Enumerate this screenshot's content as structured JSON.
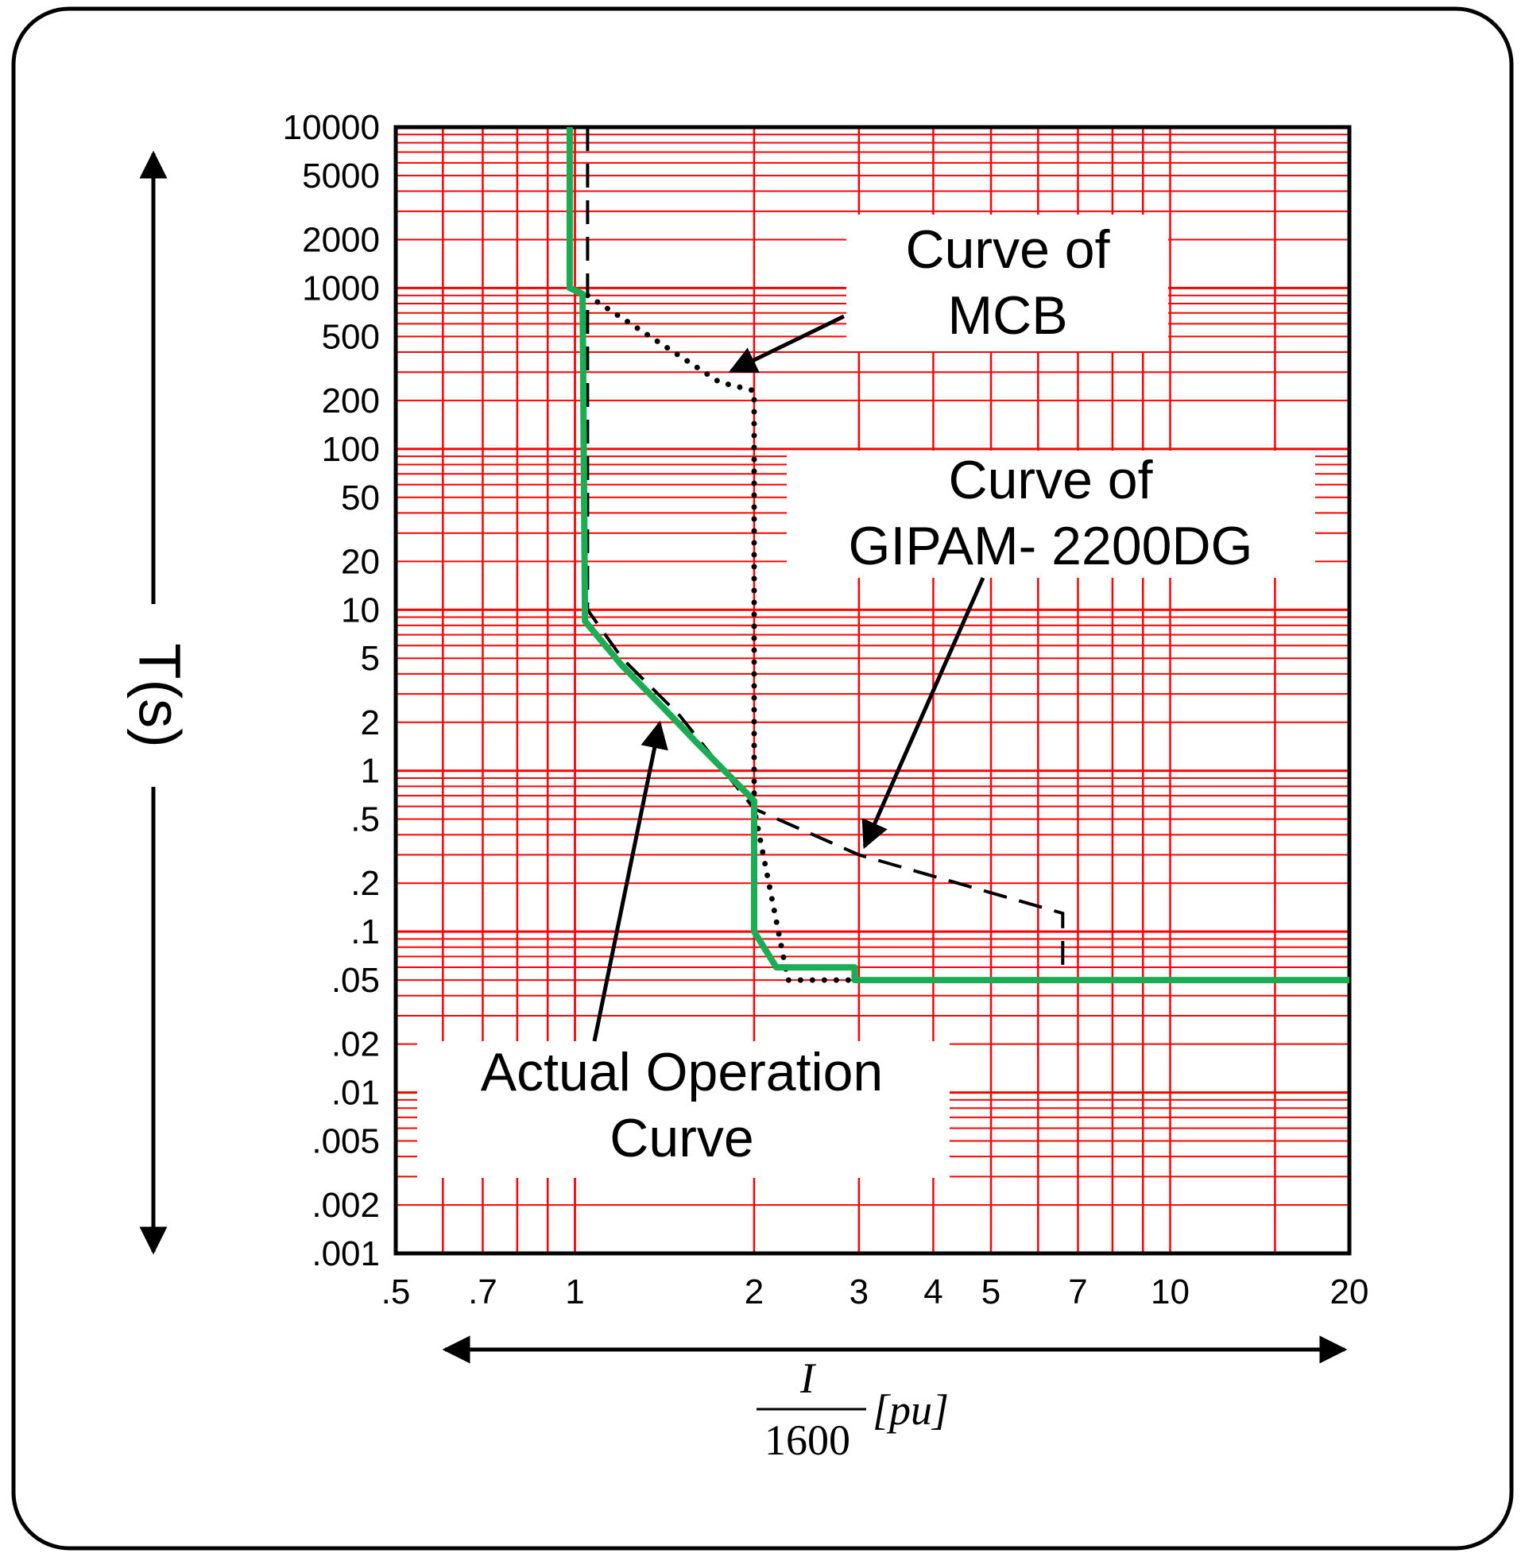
{
  "chart_data": {
    "type": "line",
    "title": "",
    "xlabel": {
      "numerator": "I",
      "denominator": "1600",
      "unit": "[pu]"
    },
    "ylabel": "T(s)",
    "xscale": "log",
    "yscale": "log",
    "xlim": [
      0.5,
      20
    ],
    "ylim": [
      0.001,
      10000
    ],
    "grid": true,
    "x_tick_values": [
      0.5,
      0.7,
      1,
      2,
      3,
      4,
      5,
      7,
      10,
      20
    ],
    "x_tick_labels": [
      ".5",
      ".7",
      "1",
      "2",
      "3",
      "4",
      "5",
      "7",
      "10",
      "20"
    ],
    "y_tick_values": [
      10000,
      5000,
      2000,
      1000,
      500,
      200,
      100,
      50,
      20,
      10,
      5,
      2,
      1,
      0.5,
      0.2,
      0.1,
      0.05,
      0.02,
      0.01,
      0.005,
      0.002,
      0.001
    ],
    "y_tick_labels": [
      "10000",
      "5000",
      "2000",
      "1000",
      "500",
      "200",
      "100",
      "50",
      "20",
      "10",
      "5",
      "2",
      "1",
      ".5",
      ".2",
      ".1",
      ".05",
      ".02",
      ".01",
      ".005",
      ".002",
      ".001"
    ],
    "series": [
      {
        "name": "Curve of MCB",
        "style": "dotted",
        "color": "#000000",
        "points": [
          [
            1.05,
            900
          ],
          [
            1.75,
            260
          ],
          [
            2.0,
            230
          ],
          [
            2.0,
            0.58
          ],
          [
            2.28,
            0.05
          ],
          [
            2.95,
            0.05
          ]
        ]
      },
      {
        "name": "Curve of GIPAM- 2200DG",
        "style": "dashed",
        "color": "#000000",
        "points": [
          [
            1.05,
            10000
          ],
          [
            1.05,
            10
          ],
          [
            1.2,
            5
          ],
          [
            1.5,
            2.2
          ],
          [
            2.0,
            0.58
          ],
          [
            3.0,
            0.3
          ],
          [
            6.6,
            0.13
          ],
          [
            6.6,
            0.05
          ]
        ]
      },
      {
        "name": "Actual Operation Curve",
        "style": "solid",
        "color": "#1aad54",
        "points": [
          [
            0.98,
            10000
          ],
          [
            0.98,
            1000
          ],
          [
            1.03,
            920
          ],
          [
            1.04,
            8.5
          ],
          [
            1.2,
            4.5
          ],
          [
            1.45,
            2.2
          ],
          [
            1.6,
            1.5
          ],
          [
            2.0,
            0.65
          ],
          [
            2.0,
            0.1
          ],
          [
            2.18,
            0.06
          ],
          [
            2.95,
            0.06
          ],
          [
            2.95,
            0.05
          ],
          [
            20,
            0.05
          ]
        ]
      }
    ],
    "annotations": [
      {
        "lines": [
          "Curve of",
          "MCB"
        ],
        "target": [
          1.8,
          300
        ]
      },
      {
        "lines": [
          "Curve of",
          "GIPAM- 2200DG"
        ],
        "target": [
          2.95,
          0.33
        ]
      },
      {
        "lines": [
          "Actual Operation",
          "Curve"
        ],
        "target": [
          1.45,
          2.5
        ]
      }
    ]
  },
  "colors": {
    "grid": "#ff0000",
    "operation_curve": "#1aad54",
    "frame": "#000000"
  }
}
